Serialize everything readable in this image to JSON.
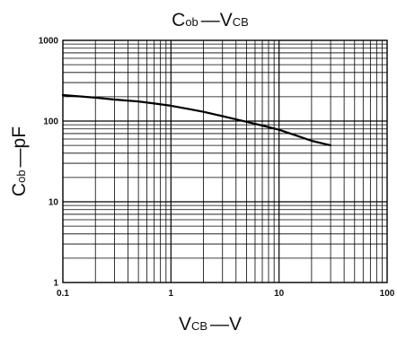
{
  "chart_data": {
    "type": "line",
    "title": {
      "main": "C",
      "sub": "ob",
      "rest": "—V",
      "rest_sub": "CB"
    },
    "xlabel": {
      "main": "V",
      "sub": "CB",
      "rest": "—V"
    },
    "ylabel": {
      "main": "C",
      "sub": "ob",
      "rest": "—pF"
    },
    "x_scale": "log",
    "y_scale": "log",
    "xlim": [
      0.1,
      100
    ],
    "ylim": [
      1,
      1000
    ],
    "x_ticks": [
      "0.1",
      "1",
      "10",
      "100"
    ],
    "y_ticks": [
      "1",
      "10",
      "100",
      "1000"
    ],
    "grid": true,
    "series": [
      {
        "x": [
          0.1,
          0.2,
          0.3,
          0.5,
          0.7,
          1,
          1.5,
          2,
          3,
          5,
          7,
          10,
          15,
          20,
          30
        ],
        "y": [
          210,
          195,
          185,
          175,
          165,
          155,
          140,
          130,
          115,
          98,
          88,
          78,
          65,
          57,
          50
        ],
        "color": "#000000"
      }
    ]
  }
}
